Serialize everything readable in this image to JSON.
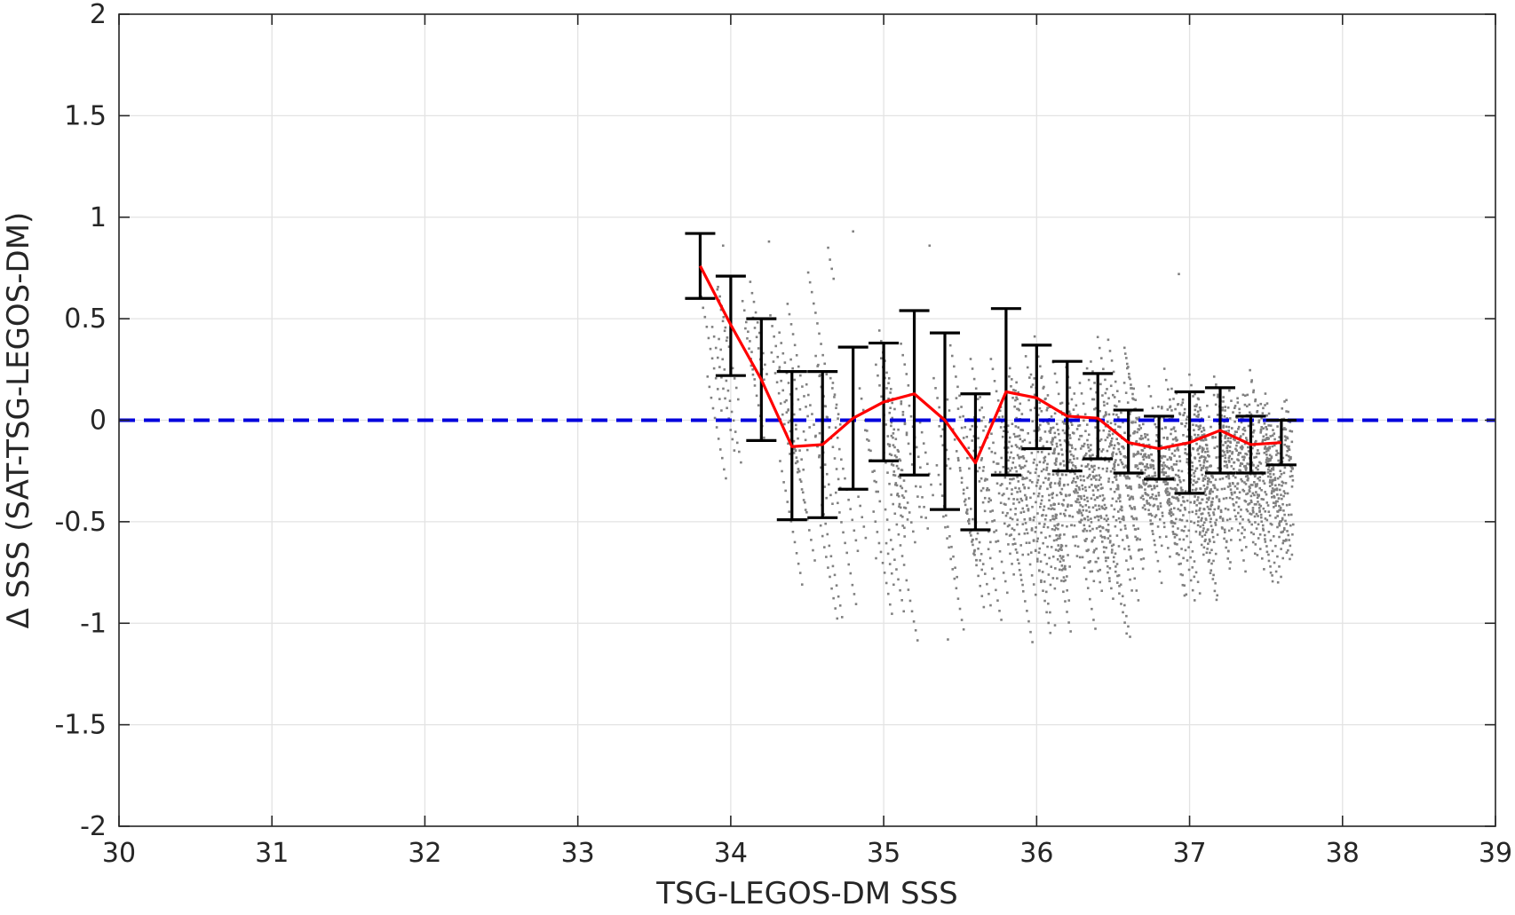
{
  "chart_data": {
    "type": "scatter",
    "title": "",
    "xlabel": "TSG-LEGOS-DM SSS",
    "ylabel": "Δ SSS (SAT-TSG-LEGOS-DM)",
    "xlim": [
      30,
      39
    ],
    "ylim": [
      -2,
      2
    ],
    "xticks": [
      "30",
      "31",
      "32",
      "33",
      "34",
      "35",
      "36",
      "37",
      "38",
      "39"
    ],
    "yticks": [
      "-2",
      "-1.5",
      "-1",
      "-0.5",
      "0",
      "0.5",
      "1",
      "1.5",
      "2"
    ],
    "grid": true,
    "reference_line": {
      "y": 0,
      "style": "dashed",
      "color": "#0000dd"
    },
    "colors": {
      "scatter": "#808080",
      "mean": "#ff0000",
      "errorbar": "#000000",
      "grid": "#e3e3e3",
      "axes": "#262626"
    },
    "bins": {
      "x": [
        33.8,
        34.0,
        34.2,
        34.4,
        34.6,
        34.8,
        35.0,
        35.2,
        35.4,
        35.6,
        35.8,
        36.0,
        36.2,
        36.4,
        36.6,
        36.8,
        37.0,
        37.2,
        37.4,
        37.6
      ],
      "mean": [
        0.76,
        0.47,
        0.2,
        -0.13,
        -0.12,
        0.01,
        0.09,
        0.13,
        0.0,
        -0.21,
        0.14,
        0.11,
        0.02,
        0.01,
        -0.11,
        -0.14,
        -0.11,
        -0.05,
        -0.12,
        -0.11
      ],
      "upper": [
        0.92,
        0.71,
        0.5,
        0.24,
        0.24,
        0.36,
        0.38,
        0.54,
        0.43,
        0.13,
        0.55,
        0.37,
        0.29,
        0.23,
        0.05,
        0.02,
        0.14,
        0.16,
        0.02,
        0.0
      ],
      "lower": [
        0.6,
        0.22,
        -0.1,
        -0.49,
        -0.48,
        -0.34,
        -0.2,
        -0.27,
        -0.44,
        -0.54,
        -0.27,
        -0.14,
        -0.25,
        -0.19,
        -0.26,
        -0.29,
        -0.36,
        -0.26,
        -0.26,
        -0.22
      ]
    },
    "scatter": {
      "description_bands": [
        {
          "x_range": [
            33.8,
            34.3
          ],
          "y_center": 0.55,
          "spread": 0.25,
          "density": 120
        },
        {
          "x_range": [
            34.3,
            35.0
          ],
          "y_center": 0.1,
          "spread": 0.45,
          "density": 260
        },
        {
          "x_range": [
            35.0,
            35.8
          ],
          "y_center": -0.05,
          "spread": 0.45,
          "density": 420
        },
        {
          "x_range": [
            35.8,
            36.6
          ],
          "y_center": -0.1,
          "spread": 0.4,
          "density": 1100
        },
        {
          "x_range": [
            36.6,
            37.65
          ],
          "y_center": -0.07,
          "spread": 0.25,
          "density": 1500
        }
      ],
      "outliers": [
        [
          33.95,
          0.86
        ],
        [
          34.25,
          0.88
        ],
        [
          34.8,
          0.93
        ],
        [
          35.3,
          0.86
        ],
        [
          35.42,
          -1.08
        ],
        [
          36.12,
          -1.01
        ],
        [
          36.93,
          0.72
        ],
        [
          34.95,
          -0.68
        ]
      ]
    }
  }
}
